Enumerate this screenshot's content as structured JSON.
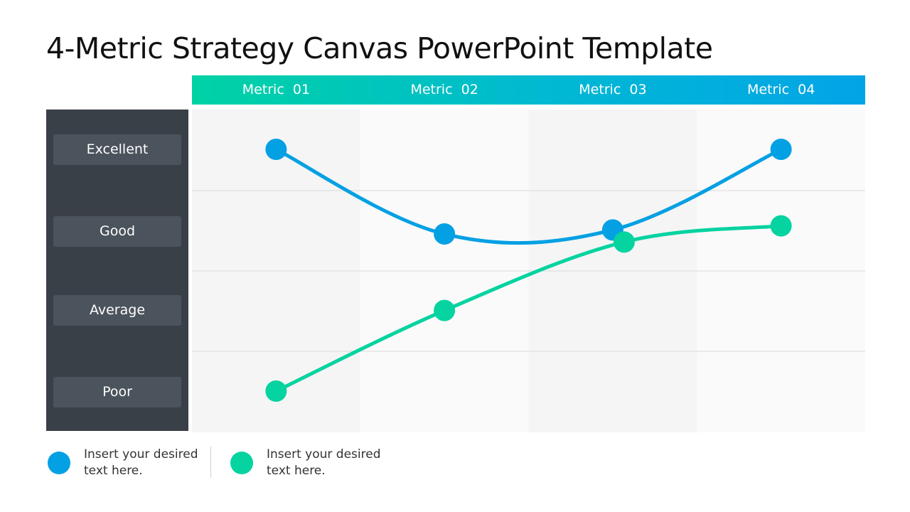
{
  "title": "4-Metric Strategy Canvas PowerPoint Template",
  "levels": [
    "Excellent",
    "Good",
    "Average",
    "Poor"
  ],
  "colors": {
    "series_blue": "#03a0e3",
    "series_green": "#05d3a0",
    "panel": "#3a4047",
    "pill": "#4b535c"
  },
  "legend": [
    {
      "text": "Insert your desired text here.",
      "color": "#03a0e3"
    },
    {
      "text": "Insert your desired text here.",
      "color": "#05d3a0"
    }
  ],
  "chart_data": {
    "type": "line",
    "categories": [
      "Metric  01",
      "Metric  02",
      "Metric  03",
      "Metric  04"
    ],
    "y_categories": [
      "Excellent",
      "Good",
      "Average",
      "Poor"
    ],
    "ylim": [
      1,
      4
    ],
    "grid": true,
    "smooth": true,
    "series": [
      {
        "color": "#03a0e3",
        "values": [
          4.0,
          2.95,
          3.0,
          4.0
        ]
      },
      {
        "color": "#05d3a0",
        "values": [
          1.0,
          2.0,
          2.85,
          3.05
        ]
      }
    ]
  }
}
